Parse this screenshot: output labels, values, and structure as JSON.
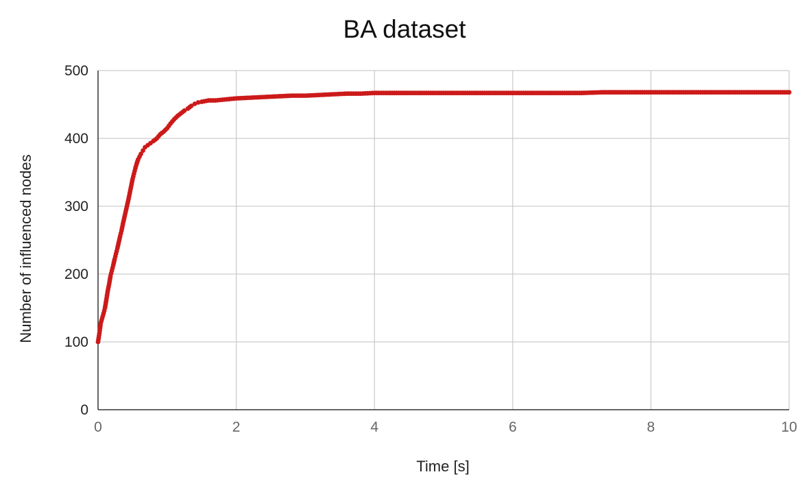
{
  "chart_data": {
    "type": "scatter",
    "title": "BA dataset",
    "xlabel": "Time [s]",
    "ylabel": "Number of influenced nodes",
    "xlim": [
      0,
      10
    ],
    "ylim": [
      0,
      500
    ],
    "x_ticks": [
      "0",
      "2",
      "4",
      "6",
      "8",
      "10"
    ],
    "y_ticks": [
      "0",
      "100",
      "200",
      "300",
      "400",
      "500"
    ],
    "grid": true,
    "legend": "none",
    "series": [
      {
        "color": "#cc1a1a",
        "points": [
          [
            0.0,
            100
          ],
          [
            0.02,
            113
          ],
          [
            0.04,
            128
          ],
          [
            0.06,
            135
          ],
          [
            0.08,
            142
          ],
          [
            0.1,
            150
          ],
          [
            0.12,
            162
          ],
          [
            0.14,
            175
          ],
          [
            0.16,
            185
          ],
          [
            0.18,
            197
          ],
          [
            0.2,
            205
          ],
          [
            0.22,
            213
          ],
          [
            0.24,
            222
          ],
          [
            0.26,
            230
          ],
          [
            0.28,
            238
          ],
          [
            0.3,
            247
          ],
          [
            0.32,
            256
          ],
          [
            0.34,
            264
          ],
          [
            0.36,
            274
          ],
          [
            0.38,
            283
          ],
          [
            0.4,
            292
          ],
          [
            0.42,
            301
          ],
          [
            0.44,
            310
          ],
          [
            0.46,
            320
          ],
          [
            0.48,
            330
          ],
          [
            0.5,
            340
          ],
          [
            0.52,
            348
          ],
          [
            0.54,
            356
          ],
          [
            0.56,
            363
          ],
          [
            0.58,
            369
          ],
          [
            0.6,
            373
          ],
          [
            0.62,
            377
          ],
          [
            0.65,
            382
          ],
          [
            0.68,
            387
          ],
          [
            0.72,
            390
          ],
          [
            0.76,
            393
          ],
          [
            0.8,
            396
          ],
          [
            0.85,
            400
          ],
          [
            0.9,
            406
          ],
          [
            0.95,
            410
          ],
          [
            1.0,
            415
          ],
          [
            1.05,
            422
          ],
          [
            1.1,
            428
          ],
          [
            1.15,
            433
          ],
          [
            1.2,
            437
          ],
          [
            1.25,
            441
          ],
          [
            1.3,
            444
          ],
          [
            1.35,
            448
          ],
          [
            1.4,
            451
          ],
          [
            1.45,
            453
          ],
          [
            1.5,
            454
          ],
          [
            1.6,
            456
          ],
          [
            1.7,
            456
          ],
          [
            1.8,
            457
          ],
          [
            1.9,
            458
          ],
          [
            2.0,
            459
          ],
          [
            2.2,
            460
          ],
          [
            2.4,
            461
          ],
          [
            2.6,
            462
          ],
          [
            2.8,
            463
          ],
          [
            3.0,
            463
          ],
          [
            3.2,
            464
          ],
          [
            3.4,
            465
          ],
          [
            3.6,
            466
          ],
          [
            3.8,
            466
          ],
          [
            4.0,
            467
          ],
          [
            4.2,
            467
          ],
          [
            4.5,
            467
          ],
          [
            5.0,
            467
          ],
          [
            5.5,
            467
          ],
          [
            6.0,
            467
          ],
          [
            6.5,
            467
          ],
          [
            7.0,
            467
          ],
          [
            7.3,
            468
          ],
          [
            7.6,
            468
          ],
          [
            8.0,
            468
          ],
          [
            8.5,
            468
          ],
          [
            9.0,
            468
          ],
          [
            9.5,
            468
          ],
          [
            10.0,
            468
          ]
        ]
      }
    ]
  }
}
